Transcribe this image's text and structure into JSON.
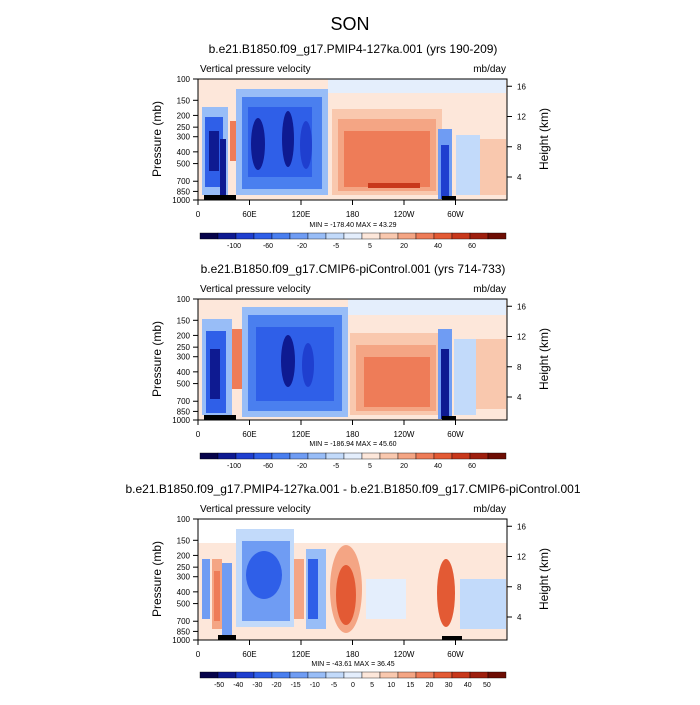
{
  "page_title": "SON",
  "colors": {
    "cold": [
      "#06034a",
      "#0e1a91",
      "#1f3fcf",
      "#2f5fe8",
      "#4a7fef",
      "#6f9cf3",
      "#98bdf7",
      "#c2dafa",
      "#e4eefc"
    ],
    "warm": [
      "#fde7da",
      "#f9c8ae",
      "#f4a584",
      "#ee7c58",
      "#e35a34",
      "#c8381b",
      "#9e1f0e",
      "#6d0d04"
    ],
    "topography": "#000000"
  },
  "chart_data": [
    {
      "type": "heatmap",
      "title": "b.e21.B1850.f09_g17.PMIP4-127ka.001 (yrs 190-209)",
      "left_label": "Vertical pressure velocity",
      "right_label": "mb/day",
      "ylabel": "Pressure (mb)",
      "y2label": "Height (km)",
      "xticks": [
        "0",
        "60E",
        "120E",
        "180",
        "120W",
        "60W"
      ],
      "yticks": [
        "100",
        "150",
        "200",
        "250",
        "300",
        "400",
        "500",
        "700",
        "850",
        "1000"
      ],
      "y2ticks": [
        "16",
        "12",
        "8",
        "4"
      ],
      "stats": "MIN = -178.40   MAX =  43.29",
      "colorbar_labels": [
        "-100",
        "-60",
        "-20",
        "-5",
        "5",
        "20",
        "40",
        "60"
      ]
    },
    {
      "type": "heatmap",
      "title": "b.e21.B1850.f09_g17.CMIP6-piControl.001 (yrs 714-733)",
      "left_label": "Vertical pressure velocity",
      "right_label": "mb/day",
      "ylabel": "Pressure (mb)",
      "y2label": "Height (km)",
      "xticks": [
        "0",
        "60E",
        "120E",
        "180",
        "120W",
        "60W"
      ],
      "yticks": [
        "100",
        "150",
        "200",
        "250",
        "300",
        "400",
        "500",
        "700",
        "850",
        "1000"
      ],
      "y2ticks": [
        "16",
        "12",
        "8",
        "4"
      ],
      "stats": "MIN = -186.94   MAX =  45.60",
      "colorbar_labels": [
        "-100",
        "-60",
        "-20",
        "-5",
        "5",
        "20",
        "40",
        "60"
      ]
    },
    {
      "type": "heatmap",
      "title": "b.e21.B1850.f09_g17.PMIP4-127ka.001 - b.e21.B1850.f09_g17.CMIP6-piControl.001",
      "left_label": "Vertical pressure velocity",
      "right_label": "mb/day",
      "ylabel": "Pressure (mb)",
      "y2label": "Height (km)",
      "xticks": [
        "0",
        "60E",
        "120E",
        "180",
        "120W",
        "60W"
      ],
      "yticks": [
        "100",
        "150",
        "200",
        "250",
        "300",
        "400",
        "500",
        "700",
        "850",
        "1000"
      ],
      "y2ticks": [
        "16",
        "12",
        "8",
        "4"
      ],
      "stats": "MIN = -43.61   MAX =  36.45",
      "colorbar_labels": [
        "-50",
        "-40",
        "-30",
        "-20",
        "-15",
        "-10",
        "-5",
        "0",
        "5",
        "10",
        "15",
        "20",
        "30",
        "40",
        "50"
      ]
    }
  ]
}
